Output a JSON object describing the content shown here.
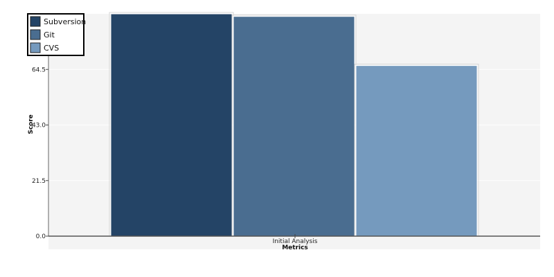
{
  "chart_data": {
    "type": "bar",
    "title": "",
    "categories": [
      "Initial Analysis"
    ],
    "series": [
      {
        "name": "Subversion",
        "values": [
          86.0
        ],
        "color": "#244466"
      },
      {
        "name": "Git",
        "values": [
          85.0
        ],
        "color": "#4a6d90"
      },
      {
        "name": "CVS",
        "values": [
          66.0
        ],
        "color": "#759abe"
      }
    ],
    "xlabel": "Metrics",
    "ylabel": "Score",
    "ylim": [
      0,
      86
    ],
    "yticks": [
      0.0,
      21.5,
      43.0,
      64.5
    ],
    "ytick_labels": [
      "0.0",
      "21.5",
      "43.0",
      "64.5"
    ],
    "grid": true,
    "legend_position": "top-left",
    "background_color": "#f4f4f4"
  }
}
